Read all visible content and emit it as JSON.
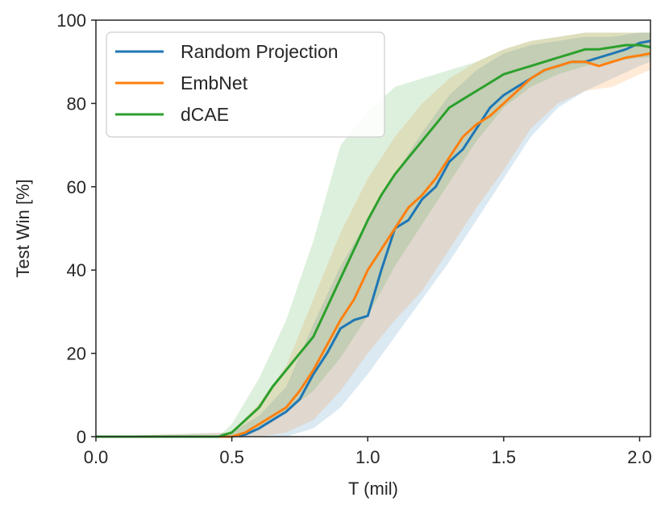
{
  "chart_data": {
    "type": "line",
    "title": "",
    "xlabel": "T (mil)",
    "ylabel": "Test Win [%]",
    "xlim": [
      0.0,
      2.04
    ],
    "ylim": [
      0,
      100
    ],
    "xticks": [
      0.0,
      0.5,
      1.0,
      1.5,
      2.0
    ],
    "xtick_labels": [
      "0.0",
      "0.5",
      "1.0",
      "1.5",
      "2.0"
    ],
    "yticks": [
      0,
      20,
      40,
      60,
      80,
      100
    ],
    "ytick_labels": [
      "0",
      "20",
      "40",
      "60",
      "80",
      "100"
    ],
    "grid": false,
    "legend_position": "top-left",
    "series": [
      {
        "name": "Random Projection",
        "color": "#1f77b4",
        "x": [
          0.0,
          0.4,
          0.5,
          0.55,
          0.6,
          0.65,
          0.7,
          0.75,
          0.8,
          0.85,
          0.9,
          0.95,
          1.0,
          1.05,
          1.1,
          1.15,
          1.2,
          1.25,
          1.3,
          1.35,
          1.4,
          1.45,
          1.5,
          1.55,
          1.6,
          1.65,
          1.7,
          1.75,
          1.8,
          1.85,
          1.9,
          1.95,
          2.0,
          2.04
        ],
        "values": [
          0,
          0,
          0,
          0.5,
          2,
          4,
          6,
          9,
          15,
          20,
          26,
          28,
          29,
          40,
          50,
          52,
          57,
          60,
          66,
          69,
          74,
          79,
          82,
          84,
          86,
          88,
          89,
          90,
          90,
          91,
          92,
          93,
          94.5,
          95
        ]
      },
      {
        "name": "EmbNet",
        "color": "#ff7f0e",
        "x": [
          0.0,
          0.45,
          0.5,
          0.55,
          0.6,
          0.65,
          0.7,
          0.75,
          0.8,
          0.85,
          0.9,
          0.95,
          1.0,
          1.05,
          1.1,
          1.15,
          1.2,
          1.25,
          1.3,
          1.35,
          1.4,
          1.45,
          1.5,
          1.55,
          1.6,
          1.65,
          1.7,
          1.75,
          1.8,
          1.85,
          1.9,
          1.95,
          2.0,
          2.04
        ],
        "values": [
          0,
          0,
          0,
          1,
          3,
          5,
          7,
          11,
          16,
          22,
          28,
          33,
          40,
          45,
          50,
          55,
          58,
          62,
          67,
          72,
          75,
          77,
          80,
          83,
          86,
          88,
          89,
          90,
          90,
          89,
          90,
          91,
          91.5,
          92
        ]
      },
      {
        "name": "dCAE",
        "color": "#2ca02c",
        "x": [
          0.0,
          0.45,
          0.5,
          0.55,
          0.6,
          0.65,
          0.7,
          0.75,
          0.8,
          0.85,
          0.9,
          0.95,
          1.0,
          1.05,
          1.1,
          1.15,
          1.2,
          1.25,
          1.3,
          1.35,
          1.4,
          1.45,
          1.5,
          1.55,
          1.6,
          1.65,
          1.7,
          1.75,
          1.8,
          1.85,
          1.9,
          1.95,
          2.0,
          2.04
        ],
        "values": [
          0,
          0,
          1,
          4,
          7,
          12,
          16,
          20,
          24,
          31,
          38,
          45,
          52,
          58,
          63,
          67,
          71,
          75,
          79,
          81,
          83,
          85,
          87,
          88,
          89,
          90,
          91,
          92,
          93,
          93,
          93.5,
          94,
          94,
          93.5
        ]
      }
    ],
    "bands": [
      {
        "series": "Random Projection",
        "x": [
          0.0,
          0.5,
          0.6,
          0.7,
          0.8,
          0.9,
          1.0,
          1.1,
          1.2,
          1.3,
          1.4,
          1.5,
          1.6,
          1.7,
          1.8,
          1.9,
          2.0,
          2.04
        ],
        "lower": [
          0,
          0,
          0,
          0,
          2,
          7,
          15,
          24,
          33,
          42,
          52,
          62,
          72,
          79,
          83,
          86,
          89,
          90
        ],
        "upper": [
          0,
          1,
          5,
          12,
          27,
          41,
          52,
          63,
          73,
          82,
          88,
          92,
          94,
          95,
          96,
          96,
          97,
          97
        ]
      },
      {
        "series": "EmbNet",
        "x": [
          0.0,
          0.5,
          0.6,
          0.7,
          0.8,
          0.9,
          1.0,
          1.1,
          1.2,
          1.3,
          1.4,
          1.5,
          1.6,
          1.7,
          1.8,
          1.9,
          2.0,
          2.04
        ],
        "lower": [
          0,
          0,
          0,
          1,
          4,
          11,
          20,
          28,
          35,
          45,
          55,
          64,
          74,
          80,
          83,
          84,
          87,
          88
        ],
        "upper": [
          0,
          1,
          8,
          17,
          33,
          49,
          62,
          72,
          80,
          86,
          90,
          93,
          95,
          96,
          97,
          97,
          97,
          97
        ]
      },
      {
        "series": "dCAE",
        "x": [
          0.0,
          0.45,
          0.5,
          0.6,
          0.7,
          0.8,
          0.9,
          1.0,
          1.1,
          1.2,
          1.3,
          1.4,
          1.5,
          1.6,
          1.7,
          1.8,
          1.9,
          2.0,
          2.04
        ],
        "lower": [
          0,
          0,
          0,
          2,
          6,
          11,
          19,
          29,
          41,
          51,
          61,
          71,
          79,
          84,
          87,
          89,
          90,
          91,
          91
        ],
        "upper": [
          0,
          0,
          3,
          14,
          28,
          47,
          70,
          78,
          84,
          86,
          88,
          90,
          93,
          95,
          96,
          97,
          97,
          97,
          97
        ]
      }
    ]
  }
}
